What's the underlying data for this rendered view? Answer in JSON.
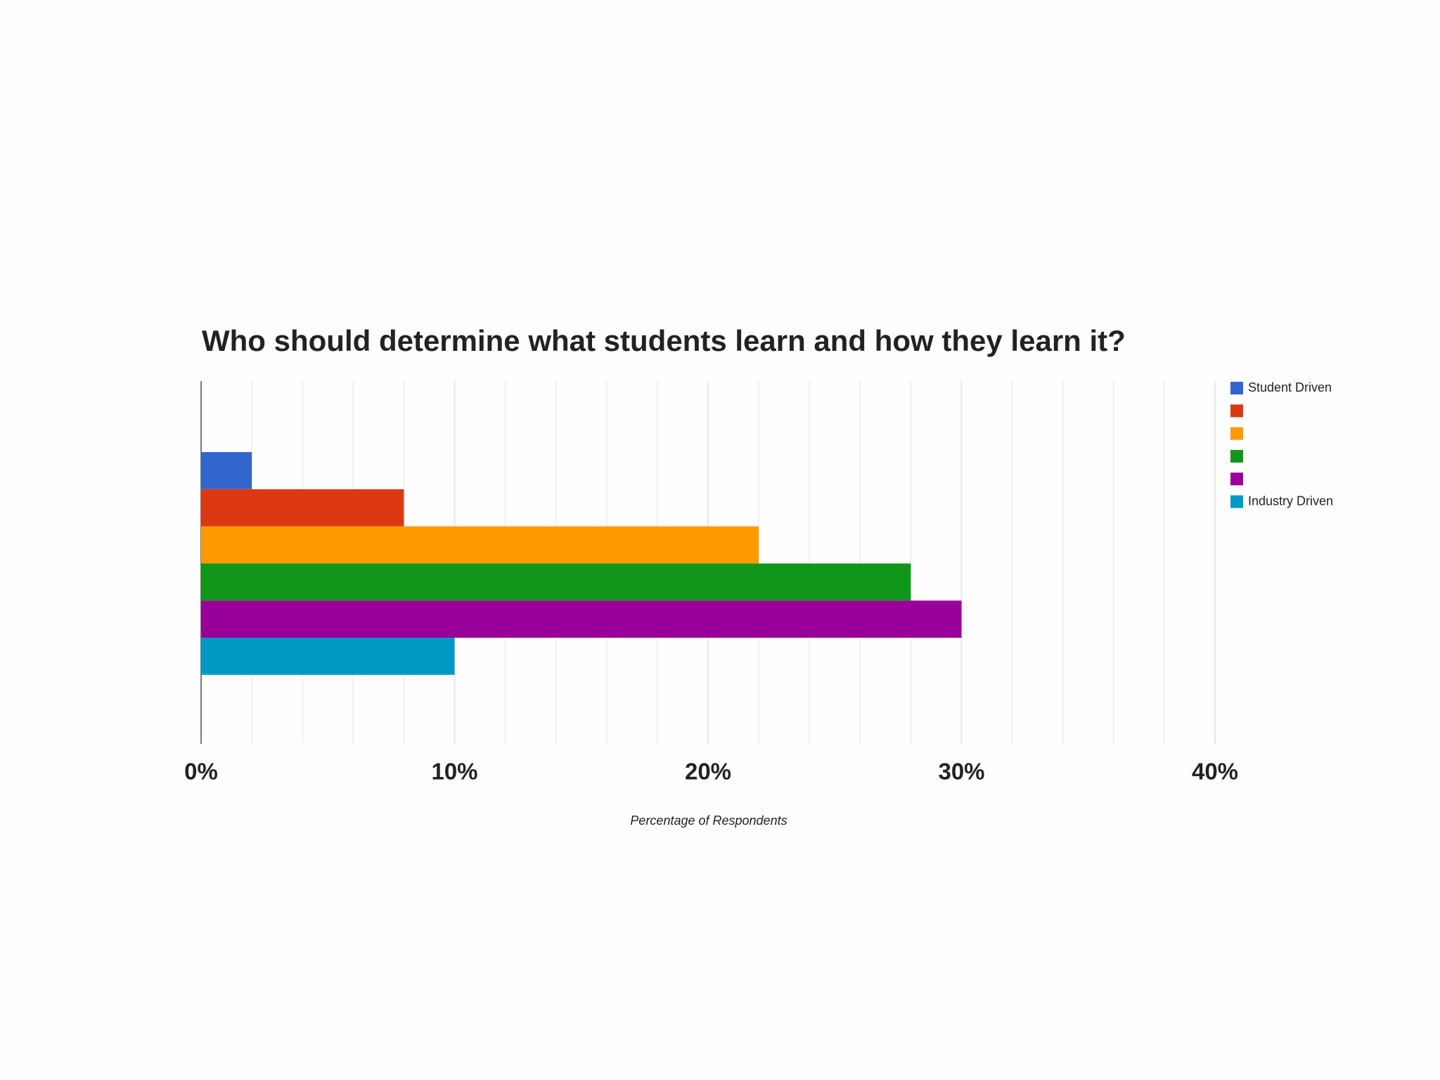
{
  "chart_data": {
    "type": "bar",
    "orientation": "horizontal",
    "title": "Who should determine what students learn and how they learn it?",
    "x_label": "Percentage of Respondents",
    "series": [
      {
        "name": "Student Driven",
        "color": "#3366cc",
        "values": [
          2
        ]
      },
      {
        "name": null,
        "color": "#dc3912",
        "values": [
          8
        ]
      },
      {
        "name": null,
        "color": "#ff9900",
        "values": [
          22
        ]
      },
      {
        "name": null,
        "color": "#109618",
        "values": [
          28
        ]
      },
      {
        "name": null,
        "color": "#990099",
        "values": [
          30
        ]
      },
      {
        "name": "Industry Driven",
        "color": "#0099c6",
        "values": [
          10
        ]
      }
    ],
    "xlim": [
      0,
      40
    ],
    "xticks": [
      {
        "value": 0,
        "label": "0%"
      },
      {
        "value": 10,
        "label": "10%"
      },
      {
        "value": 20,
        "label": "20%"
      },
      {
        "value": 30,
        "label": "30%"
      },
      {
        "value": 40,
        "label": "40%"
      }
    ],
    "grid": true,
    "minor_grid_divisions": 5,
    "legend": "right"
  }
}
